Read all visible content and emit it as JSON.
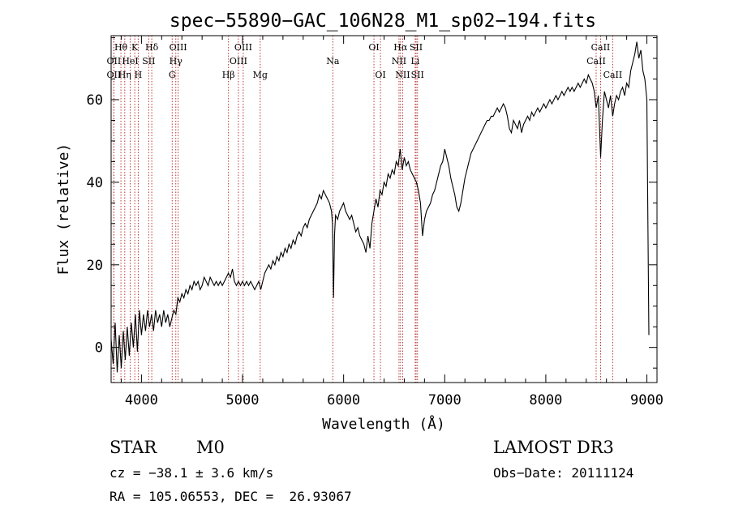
{
  "chart_data": {
    "type": "line",
    "title": "spec−55890−GAC_106N28_M1_sp02−194.fits",
    "xlabel": "Wavelength (Å)",
    "ylabel": "Flux (relative)",
    "xlim": [
      3700,
      9100
    ],
    "ylim": [
      -8.5,
      75.5
    ],
    "xticks": [
      4000,
      5000,
      6000,
      7000,
      8000,
      9000
    ],
    "yticks": [
      0,
      20,
      40,
      60
    ],
    "grid": false,
    "series": [
      {
        "name": "spectrum",
        "points": [
          [
            3700,
            2
          ],
          [
            3720,
            -4
          ],
          [
            3740,
            6
          ],
          [
            3760,
            -6
          ],
          [
            3780,
            3
          ],
          [
            3800,
            -5
          ],
          [
            3820,
            4
          ],
          [
            3840,
            -3
          ],
          [
            3860,
            5
          ],
          [
            3880,
            -2
          ],
          [
            3900,
            6
          ],
          [
            3920,
            0
          ],
          [
            3940,
            8
          ],
          [
            3960,
            -1
          ],
          [
            3980,
            9
          ],
          [
            4000,
            3
          ],
          [
            4020,
            8
          ],
          [
            4040,
            4
          ],
          [
            4060,
            9
          ],
          [
            4080,
            5
          ],
          [
            4100,
            8
          ],
          [
            4120,
            4
          ],
          [
            4140,
            9
          ],
          [
            4160,
            6
          ],
          [
            4180,
            8
          ],
          [
            4200,
            5
          ],
          [
            4220,
            9
          ],
          [
            4240,
            6
          ],
          [
            4260,
            8
          ],
          [
            4280,
            5
          ],
          [
            4300,
            7
          ],
          [
            4320,
            9
          ],
          [
            4340,
            8
          ],
          [
            4360,
            12
          ],
          [
            4380,
            11
          ],
          [
            4400,
            13
          ],
          [
            4420,
            12
          ],
          [
            4440,
            14
          ],
          [
            4460,
            13
          ],
          [
            4480,
            15
          ],
          [
            4500,
            14
          ],
          [
            4520,
            16
          ],
          [
            4540,
            15
          ],
          [
            4560,
            16
          ],
          [
            4580,
            14
          ],
          [
            4600,
            15
          ],
          [
            4620,
            17
          ],
          [
            4640,
            16
          ],
          [
            4660,
            15
          ],
          [
            4680,
            17
          ],
          [
            4700,
            16
          ],
          [
            4720,
            15
          ],
          [
            4740,
            16
          ],
          [
            4760,
            15
          ],
          [
            4780,
            16
          ],
          [
            4800,
            15
          ],
          [
            4820,
            16
          ],
          [
            4840,
            17
          ],
          [
            4860,
            18
          ],
          [
            4880,
            17
          ],
          [
            4900,
            19
          ],
          [
            4920,
            16
          ],
          [
            4940,
            15
          ],
          [
            4960,
            16
          ],
          [
            4980,
            15
          ],
          [
            5000,
            16
          ],
          [
            5020,
            15
          ],
          [
            5040,
            16
          ],
          [
            5060,
            15
          ],
          [
            5080,
            16
          ],
          [
            5100,
            15
          ],
          [
            5120,
            14
          ],
          [
            5140,
            15
          ],
          [
            5160,
            16
          ],
          [
            5180,
            14
          ],
          [
            5200,
            16
          ],
          [
            5220,
            18
          ],
          [
            5240,
            19
          ],
          [
            5260,
            20
          ],
          [
            5280,
            19
          ],
          [
            5300,
            21
          ],
          [
            5320,
            20
          ],
          [
            5340,
            22
          ],
          [
            5360,
            21
          ],
          [
            5380,
            23
          ],
          [
            5400,
            22
          ],
          [
            5420,
            24
          ],
          [
            5440,
            23
          ],
          [
            5460,
            25
          ],
          [
            5480,
            24
          ],
          [
            5500,
            26
          ],
          [
            5520,
            25
          ],
          [
            5540,
            27
          ],
          [
            5560,
            28
          ],
          [
            5580,
            27
          ],
          [
            5600,
            29
          ],
          [
            5620,
            30
          ],
          [
            5640,
            29
          ],
          [
            5660,
            31
          ],
          [
            5680,
            32
          ],
          [
            5700,
            33
          ],
          [
            5720,
            34
          ],
          [
            5740,
            35
          ],
          [
            5760,
            37
          ],
          [
            5780,
            36
          ],
          [
            5800,
            38
          ],
          [
            5820,
            37
          ],
          [
            5840,
            36
          ],
          [
            5860,
            35
          ],
          [
            5880,
            33
          ],
          [
            5890,
            30
          ],
          [
            5900,
            12
          ],
          [
            5910,
            27
          ],
          [
            5920,
            32
          ],
          [
            5940,
            31
          ],
          [
            5960,
            33
          ],
          [
            5980,
            34
          ],
          [
            6000,
            35
          ],
          [
            6020,
            33
          ],
          [
            6040,
            32
          ],
          [
            6060,
            31
          ],
          [
            6080,
            32
          ],
          [
            6100,
            30
          ],
          [
            6120,
            28
          ],
          [
            6140,
            29
          ],
          [
            6160,
            27
          ],
          [
            6180,
            26
          ],
          [
            6200,
            25
          ],
          [
            6220,
            23
          ],
          [
            6240,
            27
          ],
          [
            6260,
            24
          ],
          [
            6280,
            30
          ],
          [
            6300,
            33
          ],
          [
            6320,
            36
          ],
          [
            6340,
            34
          ],
          [
            6360,
            38
          ],
          [
            6380,
            37
          ],
          [
            6400,
            40
          ],
          [
            6420,
            39
          ],
          [
            6440,
            42
          ],
          [
            6460,
            41
          ],
          [
            6480,
            43
          ],
          [
            6500,
            42
          ],
          [
            6520,
            45
          ],
          [
            6540,
            44
          ],
          [
            6560,
            48
          ],
          [
            6580,
            43
          ],
          [
            6600,
            46
          ],
          [
            6620,
            44
          ],
          [
            6640,
            45
          ],
          [
            6660,
            43
          ],
          [
            6680,
            42
          ],
          [
            6700,
            41
          ],
          [
            6720,
            40
          ],
          [
            6740,
            38
          ],
          [
            6760,
            35
          ],
          [
            6780,
            27
          ],
          [
            6800,
            31
          ],
          [
            6820,
            33
          ],
          [
            6840,
            34
          ],
          [
            6860,
            35
          ],
          [
            6880,
            37
          ],
          [
            6900,
            38
          ],
          [
            6920,
            40
          ],
          [
            6940,
            42
          ],
          [
            6960,
            44
          ],
          [
            6980,
            45
          ],
          [
            7000,
            48
          ],
          [
            7020,
            46
          ],
          [
            7040,
            44
          ],
          [
            7060,
            41
          ],
          [
            7080,
            39
          ],
          [
            7100,
            37
          ],
          [
            7120,
            34
          ],
          [
            7140,
            33
          ],
          [
            7160,
            35
          ],
          [
            7180,
            38
          ],
          [
            7200,
            41
          ],
          [
            7220,
            43
          ],
          [
            7240,
            45
          ],
          [
            7260,
            47
          ],
          [
            7280,
            48
          ],
          [
            7300,
            49
          ],
          [
            7320,
            50
          ],
          [
            7340,
            51
          ],
          [
            7360,
            52
          ],
          [
            7380,
            53
          ],
          [
            7400,
            54
          ],
          [
            7420,
            55
          ],
          [
            7440,
            55
          ],
          [
            7460,
            56
          ],
          [
            7480,
            56
          ],
          [
            7500,
            57
          ],
          [
            7520,
            58
          ],
          [
            7540,
            57
          ],
          [
            7560,
            58
          ],
          [
            7580,
            59
          ],
          [
            7600,
            58
          ],
          [
            7620,
            56
          ],
          [
            7640,
            53
          ],
          [
            7660,
            52
          ],
          [
            7680,
            55
          ],
          [
            7700,
            54
          ],
          [
            7720,
            53
          ],
          [
            7740,
            55
          ],
          [
            7760,
            52
          ],
          [
            7780,
            54
          ],
          [
            7800,
            55
          ],
          [
            7820,
            56
          ],
          [
            7840,
            55
          ],
          [
            7860,
            57
          ],
          [
            7880,
            56
          ],
          [
            7900,
            57
          ],
          [
            7920,
            58
          ],
          [
            7940,
            57
          ],
          [
            7960,
            58
          ],
          [
            7980,
            59
          ],
          [
            8000,
            58
          ],
          [
            8020,
            59
          ],
          [
            8040,
            60
          ],
          [
            8060,
            59
          ],
          [
            8080,
            60
          ],
          [
            8100,
            61
          ],
          [
            8120,
            60
          ],
          [
            8140,
            61
          ],
          [
            8160,
            62
          ],
          [
            8180,
            61
          ],
          [
            8200,
            62
          ],
          [
            8220,
            63
          ],
          [
            8240,
            62
          ],
          [
            8260,
            63
          ],
          [
            8280,
            62
          ],
          [
            8300,
            63
          ],
          [
            8320,
            64
          ],
          [
            8340,
            63
          ],
          [
            8360,
            64
          ],
          [
            8380,
            65
          ],
          [
            8400,
            64
          ],
          [
            8420,
            66
          ],
          [
            8440,
            65
          ],
          [
            8460,
            64
          ],
          [
            8480,
            62
          ],
          [
            8498,
            58
          ],
          [
            8520,
            61
          ],
          [
            8542,
            46
          ],
          [
            8560,
            55
          ],
          [
            8580,
            62
          ],
          [
            8600,
            60
          ],
          [
            8620,
            58
          ],
          [
            8640,
            61
          ],
          [
            8662,
            56
          ],
          [
            8680,
            59
          ],
          [
            8700,
            61
          ],
          [
            8720,
            60
          ],
          [
            8740,
            62
          ],
          [
            8760,
            63
          ],
          [
            8780,
            61
          ],
          [
            8800,
            64
          ],
          [
            8820,
            63
          ],
          [
            8840,
            67
          ],
          [
            8860,
            69
          ],
          [
            8880,
            71
          ],
          [
            8900,
            74
          ],
          [
            8920,
            70
          ],
          [
            8940,
            72
          ],
          [
            8960,
            67
          ],
          [
            8980,
            65
          ],
          [
            9000,
            60
          ],
          [
            9010,
            30
          ],
          [
            9020,
            3
          ]
        ]
      }
    ],
    "line_labels": [
      {
        "label": "Hθ",
        "wavelength": 3797,
        "row": 1
      },
      {
        "label": "Hη",
        "wavelength": 3835,
        "row": 3
      },
      {
        "label": "OII",
        "wavelength": 3727,
        "row": 2
      },
      {
        "label": "OII",
        "wavelength": 3727,
        "row": 3
      },
      {
        "label": "HeI",
        "wavelength": 3889,
        "row": 2
      },
      {
        "label": "K",
        "wavelength": 3934,
        "row": 1
      },
      {
        "label": "H",
        "wavelength": 3968,
        "row": 3
      },
      {
        "label": "SII",
        "wavelength": 4072,
        "row": 2
      },
      {
        "label": "Hδ",
        "wavelength": 4102,
        "row": 1
      },
      {
        "label": "OIII",
        "wavelength": 4363,
        "row": 1
      },
      {
        "label": "Hγ",
        "wavelength": 4340,
        "row": 2
      },
      {
        "label": "G",
        "wavelength": 4304,
        "row": 3
      },
      {
        "label": "Hβ",
        "wavelength": 4861,
        "row": 3
      },
      {
        "label": "OIII",
        "wavelength": 5007,
        "row": 1
      },
      {
        "label": "OIII",
        "wavelength": 4959,
        "row": 2
      },
      {
        "label": "Mg",
        "wavelength": 5175,
        "row": 3
      },
      {
        "label": "Na",
        "wavelength": 5893,
        "row": 2
      },
      {
        "label": "OI",
        "wavelength": 6300,
        "row": 1
      },
      {
        "label": "OI",
        "wavelength": 6364,
        "row": 3
      },
      {
        "label": "Hα",
        "wavelength": 6563,
        "row": 1
      },
      {
        "label": "NII",
        "wavelength": 6548,
        "row": 2
      },
      {
        "label": "NII",
        "wavelength": 6584,
        "row": 3
      },
      {
        "label": "SII",
        "wavelength": 6717,
        "row": 1
      },
      {
        "label": "Li",
        "wavelength": 6708,
        "row": 2
      },
      {
        "label": "SII",
        "wavelength": 6731,
        "row": 3
      },
      {
        "label": "CaII",
        "wavelength": 8542,
        "row": 1
      },
      {
        "label": "CaII",
        "wavelength": 8498,
        "row": 2
      },
      {
        "label": "CaII",
        "wavelength": 8662,
        "row": 3
      }
    ]
  },
  "info": {
    "object_class": "STAR",
    "subclass": "M0",
    "redshift": "cz = −38.1 ± 3.6 km/s",
    "coords": "RA = 105.06553, DEC =  26.93067",
    "survey": "LAMOST DR3",
    "obs_date": "Obs−Date: 20111124"
  },
  "colors": {
    "spectrum": "#000000",
    "marker_lines": "#b22222",
    "axes": "#000000",
    "background": "#ffffff"
  }
}
